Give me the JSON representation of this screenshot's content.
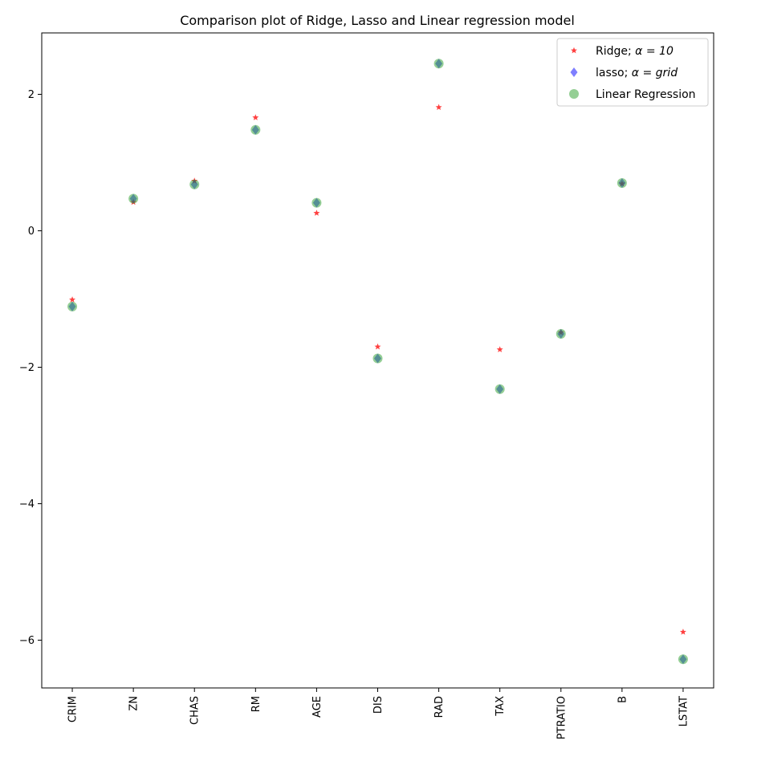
{
  "chart_data": {
    "type": "scatter",
    "title": "Comparison plot of Ridge, Lasso and Linear regression model",
    "xlabel": "",
    "ylabel": "",
    "categories": [
      "CRIM",
      "ZN",
      "CHAS",
      "RM",
      "AGE",
      "DIS",
      "RAD",
      "TAX",
      "PTRATIO",
      "B",
      "LSTAT"
    ],
    "yticks": [
      2,
      0,
      -2,
      -4,
      -6
    ],
    "ylim": [
      -6.7,
      2.9
    ],
    "grid": false,
    "legend_position": "top-right",
    "series": [
      {
        "name": "Ridge; α = 10",
        "legend_prefix": "Ridge; ",
        "legend_math": "α = 10",
        "marker": "star",
        "color": "#ff0000",
        "values": [
          -1.01,
          0.42,
          0.73,
          1.66,
          0.26,
          -1.7,
          1.81,
          -1.74,
          -1.49,
          0.69,
          -5.88
        ]
      },
      {
        "name": "lasso; α = grid",
        "legend_prefix": "lasso; ",
        "legend_math": "α = grid",
        "marker": "diamond",
        "color": "#0000ff",
        "values": [
          -1.11,
          0.47,
          0.68,
          1.48,
          0.41,
          -1.87,
          2.45,
          -2.32,
          -1.51,
          0.7,
          -6.28
        ]
      },
      {
        "name": "Linear Regression",
        "legend_prefix": "Linear Regression",
        "legend_math": "",
        "marker": "circle",
        "color": "#2ca02c",
        "values": [
          -1.11,
          0.47,
          0.68,
          1.48,
          0.41,
          -1.87,
          2.45,
          -2.32,
          -1.51,
          0.7,
          -6.28
        ]
      }
    ]
  }
}
